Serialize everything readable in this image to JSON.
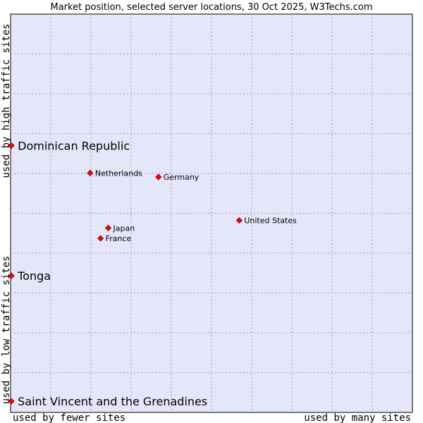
{
  "chart_data": {
    "type": "scatter",
    "title": "Market position, selected server locations, 30 Oct 2025, W3Techs.com",
    "xlabel_low": "used by fewer sites",
    "xlabel_high": "used by many sites",
    "ylabel_low": "used by low traffic sites",
    "ylabel_high": "used by high traffic sites",
    "xlim": [
      0,
      100
    ],
    "ylim": [
      0,
      100
    ],
    "grid": true,
    "colors": {
      "plot_bg": "#e6e6fa",
      "grid": "#9c9cb4",
      "point": "#ff0000",
      "point_edge": "#8b0000"
    },
    "points": [
      {
        "name": "Dominican Republic",
        "x": 0.2,
        "y": 67,
        "emphasis": true
      },
      {
        "name": "Netherlands",
        "x": 19.8,
        "y": 60.1,
        "emphasis": false
      },
      {
        "name": "Germany",
        "x": 36.8,
        "y": 59.1,
        "emphasis": false
      },
      {
        "name": "United States",
        "x": 56.9,
        "y": 48.2,
        "emphasis": false
      },
      {
        "name": "Japan",
        "x": 24.3,
        "y": 46.3,
        "emphasis": false
      },
      {
        "name": "France",
        "x": 22.4,
        "y": 43.7,
        "emphasis": false
      },
      {
        "name": "Tonga",
        "x": 0.2,
        "y": 34.3,
        "emphasis": true
      },
      {
        "name": "Saint Vincent and the Grenadines",
        "x": 0.2,
        "y": 2.8,
        "emphasis": true
      }
    ]
  }
}
